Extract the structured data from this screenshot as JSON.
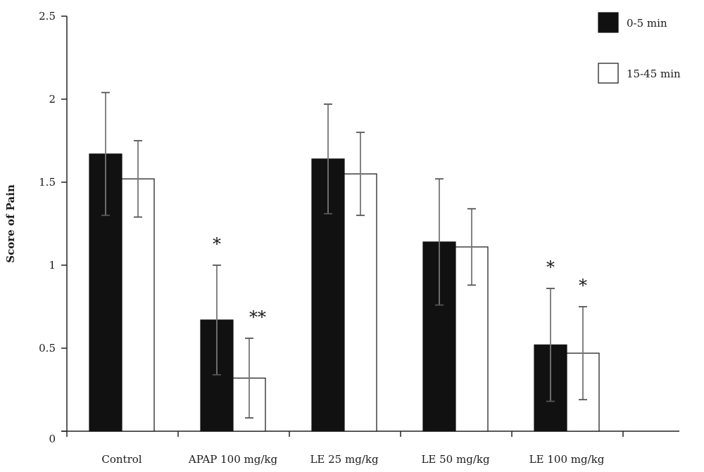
{
  "chart_data": {
    "type": "bar",
    "title": "",
    "xlabel": "",
    "ylabel": "Score of Pain",
    "ylim": [
      0,
      2.5
    ],
    "yticks": [
      0,
      0.5,
      1,
      1.5,
      2,
      2.5
    ],
    "ytick_labels": [
      "0",
      "0.5",
      "1",
      "1.5",
      "2",
      "2.5"
    ],
    "categories": [
      "Control",
      "APAP 100 mg/kg",
      "LE 25 mg/kg",
      "LE 50 mg/kg",
      "LE 100 mg/kg"
    ],
    "grid": false,
    "legend_position": "top-right",
    "series": [
      {
        "name": "0-5 min",
        "color": "#111111",
        "values": [
          1.67,
          0.67,
          1.64,
          1.14,
          0.52
        ],
        "errors": [
          0.37,
          0.33,
          0.33,
          0.38,
          0.34
        ]
      },
      {
        "name": "15-45 min",
        "color": "#ffffff",
        "values": [
          1.52,
          0.32,
          1.55,
          1.11,
          0.47
        ],
        "errors": [
          0.23,
          0.24,
          0.25,
          0.23,
          0.28
        ]
      }
    ],
    "annotations": [
      {
        "category": 1,
        "series": 0,
        "text": "*"
      },
      {
        "category": 1,
        "series": 1,
        "text": "**"
      },
      {
        "category": 4,
        "series": 0,
        "text": "*"
      },
      {
        "category": 4,
        "series": 1,
        "text": "*"
      }
    ]
  }
}
